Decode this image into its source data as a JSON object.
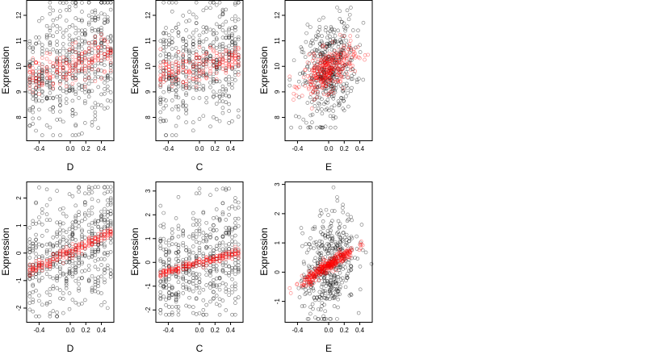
{
  "figure": {
    "background": "#ffffff"
  },
  "style": {
    "observed_color": "#000000",
    "fitted_color": "#ff0000"
  },
  "chart_data": [
    {
      "type": "scatter",
      "xlabel": "D",
      "ylabel": "Expression",
      "xlim": [
        -0.56,
        0.56
      ],
      "ylim": [
        7.1,
        12.6
      ],
      "xticks": [
        -0.4,
        0.0,
        0.2,
        0.4
      ],
      "xtick_labels": [
        "-0.4",
        "0.0",
        "0.2",
        "0.4"
      ],
      "yticks": [
        8,
        9,
        10,
        11,
        12
      ],
      "ytick_labels": [
        "8",
        "9",
        "10",
        "11",
        "12"
      ],
      "x_levels": [
        -0.52,
        -0.48,
        -0.44,
        -0.4,
        -0.36,
        -0.3,
        -0.26,
        -0.22,
        -0.17,
        -0.13,
        -0.09,
        -0.05,
        -0.01,
        0.03,
        0.07,
        0.11,
        0.15,
        0.19,
        0.24,
        0.28,
        0.32,
        0.36,
        0.4,
        0.44,
        0.48,
        0.52
      ],
      "observed_y_range": [
        7.3,
        12.5
      ],
      "fitted": {
        "center_at_xmin": 9.5,
        "center_at_xmax": 10.6,
        "spread": 0.8
      }
    },
    {
      "type": "scatter",
      "xlabel": "C",
      "ylabel": "Expression",
      "xlim": [
        -0.56,
        0.56
      ],
      "ylim": [
        7.1,
        12.6
      ],
      "xticks": [
        -0.4,
        0.0,
        0.2,
        0.4
      ],
      "xtick_labels": [
        "-0.4",
        "0.0",
        "0.2",
        "0.4"
      ],
      "yticks": [
        8,
        9,
        10,
        11,
        12
      ],
      "ytick_labels": [
        "8",
        "9",
        "10",
        "11",
        "12"
      ],
      "x_levels": [
        -0.5,
        -0.46,
        -0.43,
        -0.39,
        -0.35,
        -0.3,
        -0.27,
        -0.21,
        -0.17,
        -0.13,
        -0.08,
        -0.04,
        0.0,
        0.05,
        0.09,
        0.14,
        0.18,
        0.22,
        0.26,
        0.3,
        0.34,
        0.38,
        0.42,
        0.46,
        0.5
      ],
      "observed_y_range": [
        7.3,
        12.5
      ],
      "fitted": {
        "center_at_xmin": 9.6,
        "center_at_xmax": 10.4,
        "spread": 0.7
      }
    },
    {
      "type": "scatter",
      "xlabel": "E",
      "ylabel": "Expression",
      "xlim": [
        -0.56,
        0.56
      ],
      "ylim": [
        7.1,
        12.6
      ],
      "xticks": [
        -0.4,
        0.0,
        0.2,
        0.4
      ],
      "xtick_labels": [
        "-0.4",
        "0.0",
        "0.2",
        "0.4"
      ],
      "yticks": [
        8,
        9,
        10,
        11,
        12
      ],
      "ytick_labels": [
        "8",
        "9",
        "10",
        "11",
        "12"
      ],
      "x_continuous_range": [
        -0.5,
        0.55
      ],
      "observed_y_range": [
        7.6,
        12.5
      ],
      "fitted": {
        "center_at_xmin": 9.0,
        "center_at_xmax": 10.7,
        "spread": 0.8
      }
    },
    {
      "type": "scatter",
      "xlabel": "D",
      "ylabel": "Expression",
      "xlim": [
        -0.56,
        0.56
      ],
      "ylim": [
        -2.5,
        2.6
      ],
      "xticks": [
        -0.4,
        0.0,
        0.2,
        0.4
      ],
      "xtick_labels": [
        "-0.4",
        "0.0",
        "0.2",
        "0.4"
      ],
      "yticks": [
        -2,
        -1,
        0,
        1,
        2
      ],
      "ytick_labels": [
        "-2",
        "-1",
        "0",
        "1",
        "2"
      ],
      "x_levels": [
        -0.52,
        -0.48,
        -0.44,
        -0.4,
        -0.36,
        -0.3,
        -0.26,
        -0.22,
        -0.17,
        -0.13,
        -0.09,
        -0.05,
        -0.01,
        0.03,
        0.07,
        0.11,
        0.15,
        0.19,
        0.24,
        0.28,
        0.32,
        0.36,
        0.4,
        0.44,
        0.48,
        0.52
      ],
      "observed_y_range": [
        -2.3,
        2.4
      ],
      "fitted": {
        "center_at_xmin": -0.7,
        "center_at_xmax": 0.8,
        "spread": 0.25
      }
    },
    {
      "type": "scatter",
      "xlabel": "C",
      "ylabel": "Expression",
      "xlim": [
        -0.56,
        0.56
      ],
      "ylim": [
        -2.5,
        3.4
      ],
      "xticks": [
        -0.4,
        0.0,
        0.2,
        0.4
      ],
      "xtick_labels": [
        "-0.4",
        "0.0",
        "0.2",
        "0.4"
      ],
      "yticks": [
        -2,
        -1,
        0,
        1,
        2,
        3
      ],
      "ytick_labels": [
        "-2",
        "-1",
        "0",
        "1",
        "2",
        "3"
      ],
      "x_levels": [
        -0.5,
        -0.46,
        -0.43,
        -0.39,
        -0.35,
        -0.3,
        -0.27,
        -0.21,
        -0.17,
        -0.13,
        -0.08,
        -0.04,
        0.0,
        0.05,
        0.09,
        0.14,
        0.18,
        0.22,
        0.26,
        0.3,
        0.34,
        0.38,
        0.42,
        0.46,
        0.5
      ],
      "observed_y_range": [
        -2.2,
        3.1
      ],
      "fitted": {
        "center_at_xmin": -0.5,
        "center_at_xmax": 0.45,
        "spread": 0.18
      }
    },
    {
      "type": "scatter",
      "xlabel": "E",
      "ylabel": "Expression",
      "xlim": [
        -0.56,
        0.56
      ],
      "ylim": [
        -1.7,
        3.1
      ],
      "xticks": [
        -0.4,
        0.0,
        0.2,
        0.4
      ],
      "xtick_labels": [
        "-0.4",
        "0.0",
        "0.2",
        "0.4"
      ],
      "yticks": [
        -1,
        0,
        1,
        2,
        3
      ],
      "ytick_labels": [
        "-1",
        "0",
        "1",
        "2",
        "3"
      ],
      "x_continuous_range": [
        -0.5,
        0.55
      ],
      "observed_y_range": [
        -1.6,
        2.9
      ],
      "fitted": {
        "center_at_xmin": -0.75,
        "center_at_xmax": 1.2,
        "spread": 0.22
      }
    }
  ]
}
